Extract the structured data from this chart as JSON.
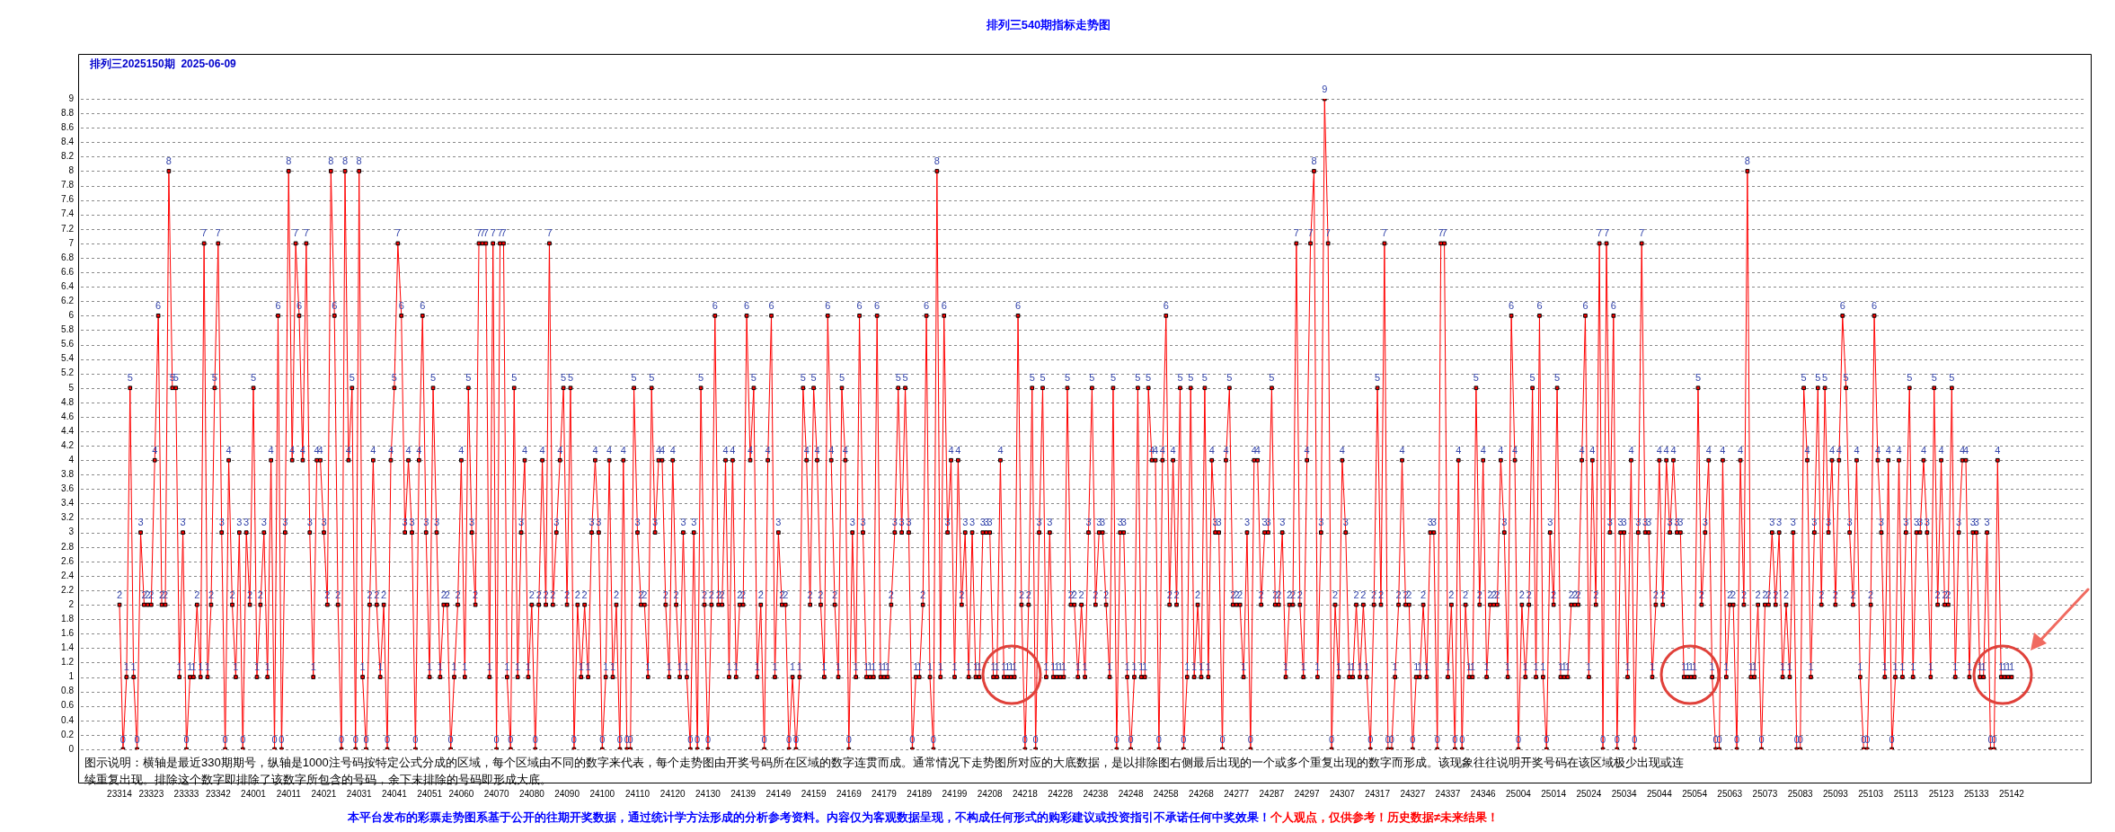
{
  "chart_data": {
    "type": "line",
    "title": "排列三540期指标走势图",
    "subtitle": "排列三2025150期  2025-06-09",
    "categories": [
      "23314",
      null,
      null,
      null,
      null,
      null,
      null,
      null,
      null,
      "23323",
      null,
      null,
      null,
      null,
      null,
      null,
      null,
      null,
      null,
      "23333",
      null,
      null,
      null,
      null,
      null,
      null,
      null,
      null,
      "23342",
      null,
      null,
      null,
      null,
      null,
      null,
      null,
      null,
      null,
      "24001",
      null,
      null,
      null,
      null,
      null,
      null,
      null,
      null,
      null,
      "24011",
      null,
      null,
      null,
      null,
      null,
      null,
      null,
      null,
      null,
      "24021",
      null,
      null,
      null,
      null,
      null,
      null,
      null,
      null,
      null,
      "24031",
      null,
      null,
      null,
      null,
      null,
      null,
      null,
      null,
      null,
      "24041",
      null,
      null,
      null,
      null,
      null,
      null,
      null,
      null,
      null,
      "24051",
      null,
      null,
      null,
      null,
      null,
      null,
      null,
      null,
      "24060",
      null,
      null,
      null,
      null,
      null,
      null,
      null,
      null,
      null,
      "24070",
      null,
      null,
      null,
      null,
      null,
      null,
      null,
      null,
      null,
      "24080",
      null,
      null,
      null,
      null,
      null,
      null,
      null,
      null,
      null,
      "24090",
      null,
      null,
      null,
      null,
      null,
      null,
      null,
      null,
      null,
      "24100",
      null,
      null,
      null,
      null,
      null,
      null,
      null,
      null,
      null,
      "24110",
      null,
      null,
      null,
      null,
      null,
      null,
      null,
      null,
      null,
      "24120",
      null,
      null,
      null,
      null,
      null,
      null,
      null,
      null,
      null,
      "24130",
      null,
      null,
      null,
      null,
      null,
      null,
      null,
      null,
      null,
      "24139",
      null,
      null,
      null,
      null,
      null,
      null,
      null,
      null,
      null,
      "24149",
      null,
      null,
      null,
      null,
      null,
      null,
      null,
      null,
      null,
      "24159",
      null,
      null,
      null,
      null,
      null,
      null,
      null,
      null,
      null,
      "24169",
      null,
      null,
      null,
      null,
      null,
      null,
      null,
      null,
      null,
      "24179",
      null,
      null,
      null,
      null,
      null,
      null,
      null,
      null,
      null,
      "24189",
      null,
      null,
      null,
      null,
      null,
      null,
      null,
      null,
      null,
      "24199",
      null,
      null,
      null,
      null,
      null,
      null,
      null,
      null,
      null,
      "24208",
      null,
      null,
      null,
      null,
      null,
      null,
      null,
      null,
      null,
      "24218",
      null,
      null,
      null,
      null,
      null,
      null,
      null,
      null,
      null,
      "24228",
      null,
      null,
      null,
      null,
      null,
      null,
      null,
      null,
      null,
      "24238",
      null,
      null,
      null,
      null,
      null,
      null,
      null,
      null,
      null,
      "24248",
      null,
      null,
      null,
      null,
      null,
      null,
      null,
      null,
      null,
      "24258",
      null,
      null,
      null,
      null,
      null,
      null,
      null,
      null,
      null,
      "24268",
      null,
      null,
      null,
      null,
      null,
      null,
      null,
      null,
      null,
      "24277",
      null,
      null,
      null,
      null,
      null,
      null,
      null,
      null,
      null,
      "24287",
      null,
      null,
      null,
      null,
      null,
      null,
      null,
      null,
      null,
      "24297",
      null,
      null,
      null,
      null,
      null,
      null,
      null,
      null,
      null,
      "24307",
      null,
      null,
      null,
      null,
      null,
      null,
      null,
      null,
      null,
      "24317",
      null,
      null,
      null,
      null,
      null,
      null,
      null,
      null,
      null,
      "24327",
      null,
      null,
      null,
      null,
      null,
      null,
      null,
      null,
      null,
      "24337",
      null,
      null,
      null,
      null,
      null,
      null,
      null,
      null,
      null,
      "24346",
      null,
      null,
      null,
      null,
      null,
      null,
      null,
      null,
      null,
      "25004",
      null,
      null,
      null,
      null,
      null,
      null,
      null,
      null,
      null,
      "25014",
      null,
      null,
      null,
      null,
      null,
      null,
      null,
      null,
      null,
      "25024",
      null,
      null,
      null,
      null,
      null,
      null,
      null,
      null,
      null,
      "25034",
      null,
      null,
      null,
      null,
      null,
      null,
      null,
      null,
      null,
      "25044",
      null,
      null,
      null,
      null,
      null,
      null,
      null,
      null,
      null,
      "25054",
      null,
      null,
      null,
      null,
      null,
      null,
      null,
      null,
      null,
      "25063",
      null,
      null,
      null,
      null,
      null,
      null,
      null,
      null,
      null,
      "25073",
      null,
      null,
      null,
      null,
      null,
      null,
      null,
      null,
      null,
      "25083",
      null,
      null,
      null,
      null,
      null,
      null,
      null,
      null,
      null,
      "25093",
      null,
      null,
      null,
      null,
      null,
      null,
      null,
      null,
      null,
      "25103",
      null,
      null,
      null,
      null,
      null,
      null,
      null,
      null,
      null,
      "25113",
      null,
      null,
      null,
      null,
      null,
      null,
      null,
      null,
      null,
      "25123",
      null,
      null,
      null,
      null,
      null,
      null,
      null,
      null,
      null,
      "25133",
      null,
      null,
      null,
      null,
      null,
      null,
      null,
      null,
      null,
      "25142"
    ],
    "series": [
      {
        "color": "#ff0000",
        "values": [
          2,
          0,
          1,
          5,
          1,
          0,
          3,
          2,
          2,
          2,
          4,
          6,
          2,
          2,
          8,
          5,
          5,
          1,
          3,
          0,
          1,
          1,
          2,
          1,
          7,
          1,
          2,
          5,
          7,
          3,
          0,
          4,
          2,
          1,
          3,
          0,
          3,
          2,
          5,
          1,
          2,
          3,
          1,
          4,
          0,
          6,
          0,
          3,
          8,
          4,
          7,
          6,
          4,
          7,
          3,
          1,
          4,
          4,
          3,
          2,
          8,
          6,
          2,
          0,
          8,
          4,
          5,
          0,
          8,
          1,
          0,
          2,
          4,
          2,
          1,
          2,
          0,
          4,
          5,
          7,
          6,
          3,
          4,
          3,
          0,
          4,
          6,
          3,
          1,
          5,
          3,
          1,
          2,
          2,
          0,
          1,
          2,
          4,
          1,
          5,
          3,
          2,
          7,
          7,
          7,
          1,
          7,
          0,
          7,
          7,
          1,
          0,
          5,
          1,
          3,
          4,
          1,
          2,
          0,
          2,
          4,
          2,
          7,
          2,
          3,
          4,
          5,
          2,
          5,
          0,
          2,
          1,
          2,
          1,
          3,
          4,
          3,
          0,
          1,
          4,
          1,
          2,
          0,
          4,
          0,
          0,
          5,
          3,
          2,
          2,
          1,
          5,
          3,
          4,
          4,
          2,
          1,
          4,
          2,
          1,
          3,
          1,
          0,
          3,
          0,
          5,
          2,
          0,
          2,
          6,
          2,
          2,
          4,
          1,
          4,
          1,
          2,
          2,
          6,
          4,
          5,
          1,
          2,
          0,
          4,
          6,
          1,
          3,
          2,
          2,
          0,
          1,
          0,
          1,
          5,
          4,
          2,
          5,
          4,
          2,
          1,
          6,
          4,
          2,
          1,
          5,
          4,
          0,
          3,
          1,
          6,
          3,
          1,
          1,
          1,
          6,
          1,
          1,
          1,
          2,
          3,
          5,
          3,
          5,
          3,
          0,
          1,
          1,
          2,
          6,
          1,
          0,
          8,
          1,
          6,
          3,
          4,
          1,
          4,
          2,
          3,
          1,
          3,
          1,
          1,
          3,
          3,
          3,
          1,
          1,
          4,
          1,
          1,
          1,
          1,
          6,
          2,
          0,
          2,
          5,
          0,
          3,
          5,
          1,
          3,
          1,
          1,
          1,
          1,
          5,
          2,
          2,
          1,
          2,
          1,
          3,
          5,
          2,
          3,
          3,
          2,
          1,
          5,
          0,
          3,
          3,
          1,
          0,
          1,
          5,
          1,
          1,
          5,
          4,
          4,
          0,
          4,
          6,
          2,
          4,
          2,
          5,
          0,
          1,
          5,
          1,
          2,
          1,
          5,
          1,
          4,
          3,
          3,
          0,
          4,
          5,
          2,
          2,
          2,
          1,
          3,
          0,
          4,
          4,
          2,
          3,
          3,
          5,
          2,
          2,
          3,
          1,
          2,
          2,
          7,
          2,
          1,
          4,
          7,
          8,
          1,
          3,
          9,
          7,
          0,
          2,
          1,
          4,
          3,
          1,
          1,
          2,
          1,
          2,
          1,
          0,
          2,
          5,
          2,
          7,
          0,
          0,
          1,
          2,
          4,
          2,
          2,
          0,
          1,
          1,
          2,
          1,
          3,
          3,
          0,
          7,
          7,
          1,
          2,
          0,
          4,
          0,
          2,
          1,
          1,
          5,
          2,
          4,
          1,
          2,
          2,
          2,
          4,
          3,
          1,
          6,
          4,
          0,
          2,
          1,
          2,
          5,
          1,
          6,
          1,
          0,
          3,
          2,
          5,
          1,
          1,
          1,
          2,
          2,
          2,
          4,
          6,
          1,
          4,
          2,
          7,
          0,
          7,
          3,
          6,
          0,
          3,
          3,
          1,
          4,
          0,
          3,
          7,
          3,
          3,
          1,
          2,
          4,
          2,
          4,
          3,
          4,
          3,
          3,
          1,
          1,
          1,
          1,
          5,
          2,
          3,
          4,
          1,
          0,
          0,
          4,
          1,
          2,
          2,
          0,
          4,
          2,
          8,
          1,
          1,
          2,
          0,
          2,
          2,
          3,
          2,
          3,
          1,
          2,
          1,
          3,
          0,
          0,
          5,
          4,
          1,
          3,
          5,
          2,
          5,
          3,
          4,
          2,
          4,
          6,
          5,
          3,
          2,
          4,
          1,
          0,
          0,
          2,
          6,
          4,
          3,
          1,
          4,
          0,
          1,
          4,
          1,
          3,
          5,
          1,
          3,
          3,
          4,
          3,
          1,
          5,
          2,
          4,
          2,
          2,
          5,
          1,
          3,
          4,
          4,
          1,
          3,
          3,
          1,
          1,
          3,
          0,
          0,
          4,
          1,
          1,
          1,
          1
        ]
      }
    ],
    "ylim": [
      0,
      9
    ],
    "yticks": [
      0,
      0.2,
      0.4,
      0.6,
      0.8,
      1,
      1.2,
      1.4,
      1.6,
      1.8,
      2,
      2.2,
      2.4,
      2.6,
      2.8,
      3,
      3.2,
      3.4,
      3.6,
      3.8,
      4,
      4.2,
      4.4,
      4.6,
      4.8,
      5,
      5.2,
      5.4,
      5.6,
      5.8,
      6,
      6.2,
      6.4,
      6.6,
      6.8,
      7,
      7.2,
      7.4,
      7.6,
      7.8,
      8,
      8.2,
      8.4,
      8.6,
      8.8,
      9
    ],
    "grid": "y",
    "marker": "square",
    "data_labels": true,
    "annotations": [
      "图示说明：横轴是最近330期期号，纵轴是1000注号码按特定公式分成的区域，每个区域由不同的数字来代表，每个走势图由开奖号码所在区域的数字连贯而成。通常情况下走势图所对应的大底数据，是以排除图右侧最后出现的一个或多个重复出现的数字而形成。该现象往往说明开奖号码在该区域极少出现或连续重复出现。排除这个数字即排除了该数字所包含的号码，余下未排除的号码即形成大底。",
      "本平台发布的彩票走势图系基于公开的往期开奖数据，通过统计学方法形成的分析参考资料。内容仅为客观数据呈现，不构成任何形式的购彩建议或投资指引不承诺任何中奖效果！",
      "个人观点，仅供参考！历史数据≠未来结果！"
    ]
  }
}
